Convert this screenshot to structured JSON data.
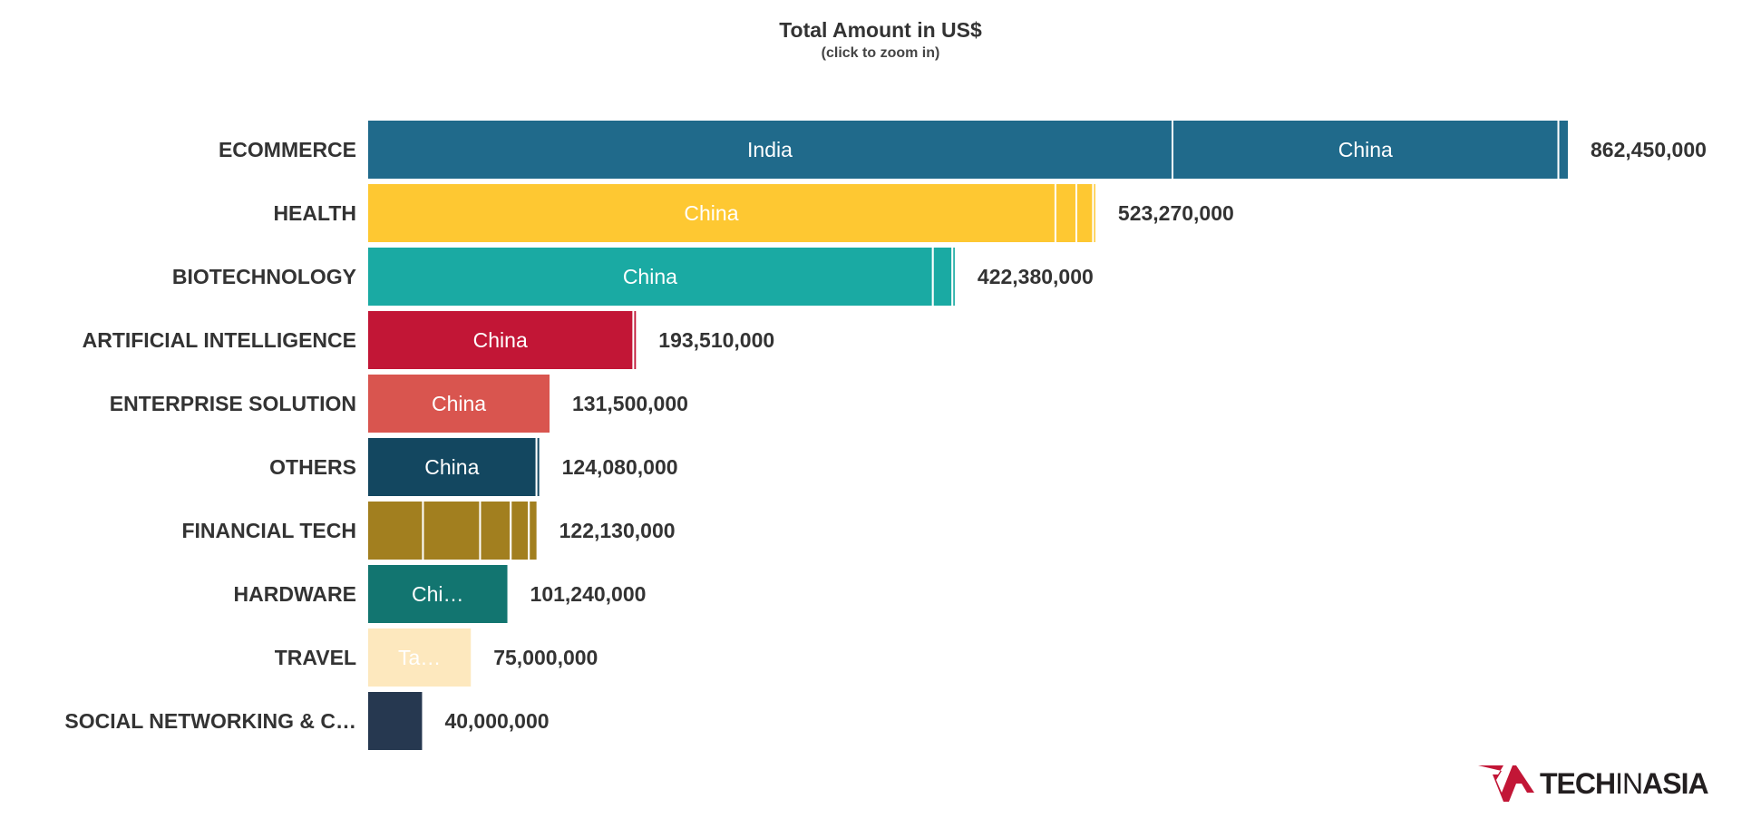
{
  "chart_data": {
    "type": "bar",
    "orientation": "horizontal",
    "stacked": true,
    "title": "Total Amount in US$",
    "subtitle": "(click to zoom in)",
    "xlabel": "",
    "ylabel": "",
    "xlim": [
      0,
      862450000
    ],
    "grid": false,
    "legend": "none",
    "categories": [
      {
        "name": "ECOMMERCE",
        "total": 862450000,
        "total_label": "862,450,000",
        "color": "#206a8b",
        "segments": [
          {
            "label": "India",
            "value": 578000000
          },
          {
            "label": "China",
            "value": 277000000
          },
          {
            "label": "",
            "value": 7450000
          }
        ]
      },
      {
        "name": "HEALTH",
        "total": 523270000,
        "total_label": "523,270,000",
        "color": "#fec832",
        "segments": [
          {
            "label": "China",
            "value": 494000000
          },
          {
            "label": "",
            "value": 15000000
          },
          {
            "label": "",
            "value": 12000000
          },
          {
            "label": "",
            "value": 2270000
          }
        ]
      },
      {
        "name": "BIOTECHNOLOGY",
        "total": 422380000,
        "total_label": "422,380,000",
        "color": "#1aaaa3",
        "segments": [
          {
            "label": "China",
            "value": 406000000
          },
          {
            "label": "",
            "value": 14000000
          },
          {
            "label": "",
            "value": 2380000
          }
        ]
      },
      {
        "name": "ARTIFICIAL INTELLIGENCE",
        "total": 193510000,
        "total_label": "193,510,000",
        "color": "#c21636",
        "segments": [
          {
            "label": "China",
            "value": 191000000
          },
          {
            "label": "",
            "value": 2510000
          }
        ]
      },
      {
        "name": "ENTERPRISE SOLUTION",
        "total": 131500000,
        "total_label": "131,500,000",
        "color": "#d9554f",
        "segments": [
          {
            "label": "China",
            "value": 131500000
          }
        ]
      },
      {
        "name": "OTHERS",
        "total": 124080000,
        "total_label": "124,080,000",
        "color": "#134760",
        "segments": [
          {
            "label": "China",
            "value": 121500000
          },
          {
            "label": "",
            "value": 2580000
          }
        ]
      },
      {
        "name": "FINANCIAL TECH",
        "total": 122130000,
        "total_label": "122,130,000",
        "color": "#a27f1f",
        "segments": [
          {
            "label": "",
            "value": 40000000
          },
          {
            "label": "",
            "value": 41000000
          },
          {
            "label": "",
            "value": 22000000
          },
          {
            "label": "",
            "value": 13000000
          },
          {
            "label": "",
            "value": 6130000
          }
        ]
      },
      {
        "name": "HARDWARE",
        "total": 101240000,
        "total_label": "101,240,000",
        "color": "#127570",
        "segments": [
          {
            "label": "Chi…",
            "value": 101240000
          }
        ]
      },
      {
        "name": "TRAVEL",
        "total": 75000000,
        "total_label": "75,000,000",
        "color": "#fde8be",
        "segments": [
          {
            "label": "Ta…",
            "value": 75000000
          }
        ]
      },
      {
        "name": "SOCIAL NETWORKING & C…",
        "total": 40000000,
        "total_label": "40,000,000",
        "color": "#263850",
        "segments": [
          {
            "label": "",
            "value": 40000000
          }
        ]
      }
    ]
  },
  "brand": {
    "logo_text_bold_left": "TECH",
    "logo_text_thin": "IN",
    "logo_text_bold_right": "ASIA",
    "logo_mark_color": "#c21636",
    "logo_text_color": "#231f20"
  }
}
